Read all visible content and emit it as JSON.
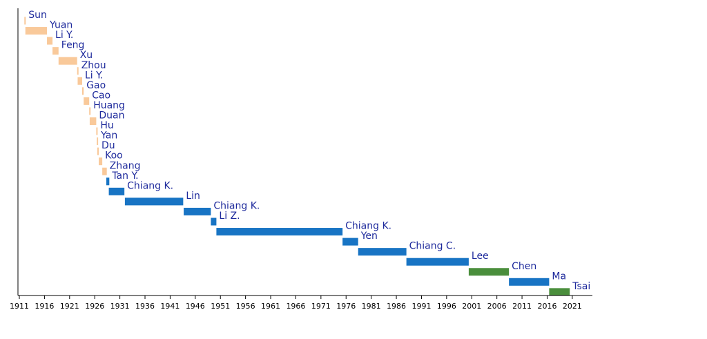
{
  "chart_data": {
    "type": "bar",
    "orientation": "horizontal-timeline",
    "title": "",
    "xlabel": "",
    "ylabel": "",
    "xlim": [
      1911,
      2025
    ],
    "grid": false,
    "colors": {
      "early": "#f9c99a",
      "kmt": "#1874c4",
      "dpp": "#4a8e3c",
      "label": "#1e2a9c"
    },
    "x_ticks": [
      1911,
      1916,
      1921,
      1926,
      1931,
      1936,
      1941,
      1946,
      1951,
      1956,
      1961,
      1966,
      1971,
      1976,
      1981,
      1986,
      1991,
      1996,
      2001,
      2006,
      2011,
      2016,
      2021
    ],
    "bars": [
      {
        "label": "Sun",
        "start": 1912.0,
        "end": 1912.2,
        "group": "early"
      },
      {
        "label": "Yuan",
        "start": 1912.2,
        "end": 1916.5,
        "group": "early"
      },
      {
        "label": "Li Y.",
        "start": 1916.5,
        "end": 1917.6,
        "group": "early"
      },
      {
        "label": "Feng",
        "start": 1917.6,
        "end": 1918.8,
        "group": "early"
      },
      {
        "label": "Xu",
        "start": 1918.8,
        "end": 1922.5,
        "group": "early"
      },
      {
        "label": "Zhou",
        "start": 1922.5,
        "end": 1922.6,
        "group": "early"
      },
      {
        "label": "Li Y.",
        "start": 1922.6,
        "end": 1923.5,
        "group": "early"
      },
      {
        "label": "Gao",
        "start": 1923.5,
        "end": 1923.8,
        "group": "early"
      },
      {
        "label": "Cao",
        "start": 1923.8,
        "end": 1924.9,
        "group": "early"
      },
      {
        "label": "Huang",
        "start": 1924.9,
        "end": 1925.0,
        "group": "early"
      },
      {
        "label": "Duan",
        "start": 1925.0,
        "end": 1926.3,
        "group": "early"
      },
      {
        "label": "Hu",
        "start": 1926.3,
        "end": 1926.4,
        "group": "early"
      },
      {
        "label": "Yan",
        "start": 1926.4,
        "end": 1926.5,
        "group": "early"
      },
      {
        "label": "Du",
        "start": 1926.5,
        "end": 1926.8,
        "group": "early"
      },
      {
        "label": "Koo",
        "start": 1926.8,
        "end": 1927.5,
        "group": "early"
      },
      {
        "label": "Zhang",
        "start": 1927.5,
        "end": 1928.4,
        "group": "early"
      },
      {
        "label": "Tan Y.",
        "start": 1928.3,
        "end": 1928.9,
        "group": "kmt"
      },
      {
        "label": "Chiang K.",
        "start": 1928.8,
        "end": 1931.9,
        "group": "kmt"
      },
      {
        "label": "Lin",
        "start": 1932.0,
        "end": 1943.6,
        "group": "kmt"
      },
      {
        "label": "Chiang K.",
        "start": 1943.7,
        "end": 1949.1,
        "group": "kmt"
      },
      {
        "label": "Li Z.",
        "start": 1949.1,
        "end": 1950.2,
        "group": "kmt"
      },
      {
        "label": "Chiang K.",
        "start": 1950.2,
        "end": 1975.3,
        "group": "kmt"
      },
      {
        "label": "Yen",
        "start": 1975.3,
        "end": 1978.4,
        "group": "kmt"
      },
      {
        "label": "Chiang C.",
        "start": 1978.4,
        "end": 1988.0,
        "group": "kmt"
      },
      {
        "label": "Lee",
        "start": 1988.0,
        "end": 2000.4,
        "group": "kmt"
      },
      {
        "label": "Chen",
        "start": 2000.4,
        "end": 2008.4,
        "group": "dpp"
      },
      {
        "label": "Ma",
        "start": 2008.4,
        "end": 2016.4,
        "group": "kmt"
      },
      {
        "label": "Tsai",
        "start": 2016.4,
        "end": 2020.5,
        "group": "dpp"
      }
    ]
  }
}
